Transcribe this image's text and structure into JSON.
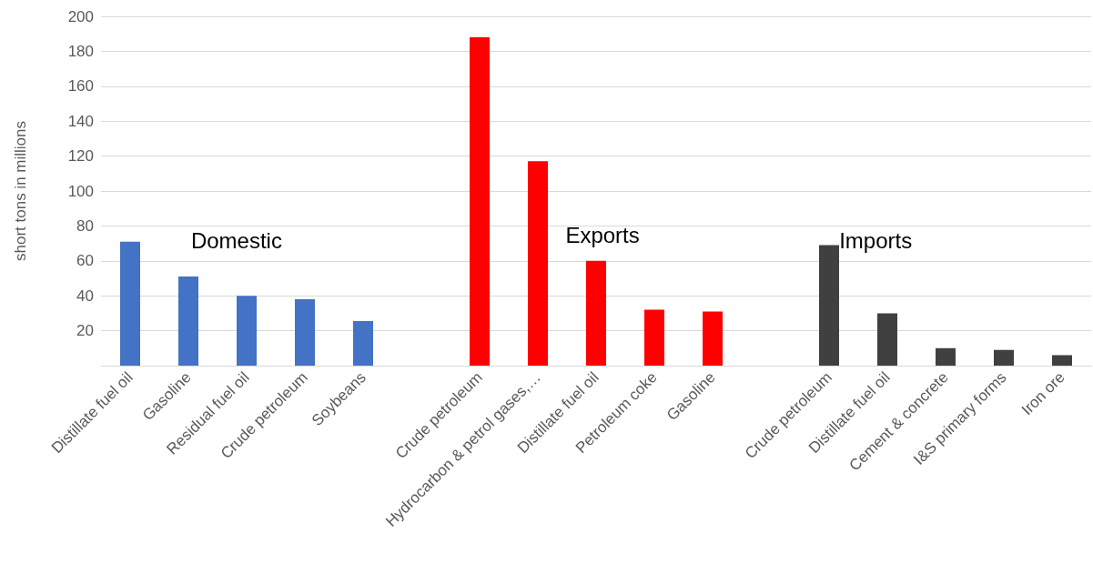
{
  "chart_data": {
    "type": "bar",
    "ylabel": "short tons in millions",
    "categories": [
      "Distillate fuel oil",
      "Gasoline",
      "Residual fuel oil",
      "Crude petroleum",
      "Soybeans",
      null,
      "Crude petroleum",
      "Hydrocarbon & petrol gases,…",
      "Distillate fuel oil",
      "Petroleum coke",
      "Gasoline",
      null,
      "Crude petroleum",
      "Distillate fuel oil",
      "Cement & concrete",
      "I&S primary forms",
      "Iron ore"
    ],
    "values": [
      71,
      51,
      40,
      38,
      25.5,
      null,
      188,
      117,
      60,
      32,
      31,
      null,
      69,
      30,
      10,
      9,
      6
    ],
    "colors": [
      "#4472c4",
      "#4472c4",
      "#4472c4",
      "#4472c4",
      "#4472c4",
      null,
      "#ff0000",
      "#ff0000",
      "#ff0000",
      "#ff0000",
      "#ff0000",
      null,
      "#404040",
      "#404040",
      "#404040",
      "#404040",
      "#404040"
    ],
    "annotations": [
      "Domestic",
      "Exports",
      "Imports"
    ],
    "ylim": [
      0,
      200
    ],
    "yticks": [
      20,
      40,
      60,
      80,
      100,
      120,
      140,
      160,
      180,
      200
    ],
    "grid": "y"
  }
}
